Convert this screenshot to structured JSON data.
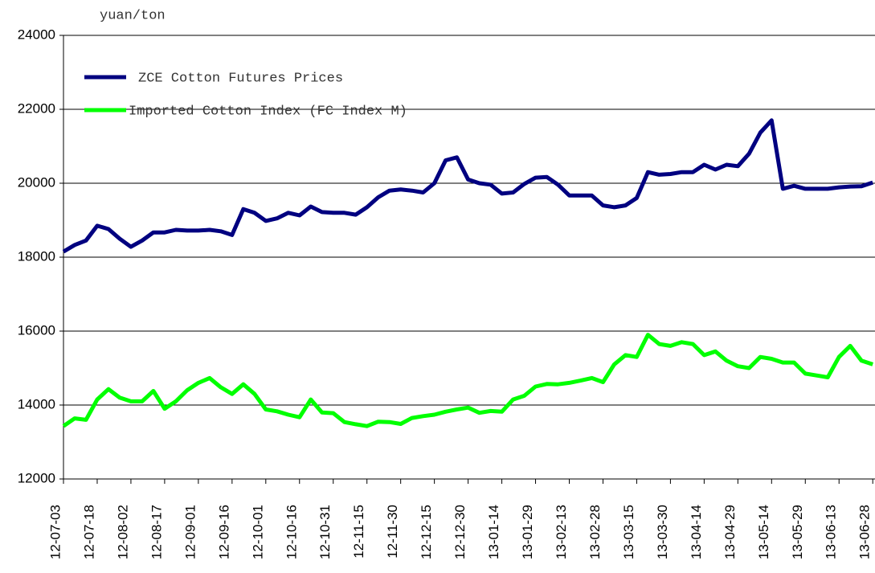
{
  "chart_data": {
    "type": "line",
    "y_axis_label": "yuan/ton",
    "x": [
      "12-07-03",
      "12-07-08",
      "12-07-13",
      "12-07-18",
      "12-07-23",
      "12-07-28",
      "12-08-02",
      "12-08-07",
      "12-08-12",
      "12-08-17",
      "12-08-22",
      "12-08-27",
      "12-09-01",
      "12-09-06",
      "12-09-11",
      "12-09-16",
      "12-09-21",
      "12-09-26",
      "12-10-01",
      "12-10-06",
      "12-10-11",
      "12-10-16",
      "12-10-21",
      "12-10-26",
      "12-10-31",
      "12-11-05",
      "12-11-10",
      "12-11-15",
      "12-11-20",
      "12-11-25",
      "12-11-30",
      "12-12-05",
      "12-12-10",
      "12-12-15",
      "12-12-20",
      "12-12-25",
      "12-12-30",
      "13-01-04",
      "13-01-09",
      "13-01-14",
      "13-01-19",
      "13-01-24",
      "13-01-29",
      "13-02-03",
      "13-02-08",
      "13-02-13",
      "13-02-18",
      "13-02-23",
      "13-02-28",
      "13-03-05",
      "13-03-10",
      "13-03-15",
      "13-03-20",
      "13-03-25",
      "13-03-30",
      "13-04-04",
      "13-04-09",
      "13-04-14",
      "13-04-19",
      "13-04-24",
      "13-04-29",
      "13-05-04",
      "13-05-09",
      "13-05-14",
      "13-05-19",
      "13-05-24",
      "13-05-29",
      "13-06-03",
      "13-06-08",
      "13-06-13",
      "13-06-18",
      "13-06-23",
      "13-06-28"
    ],
    "series": [
      {
        "name": "ZCE Cotton Futures Prices",
        "color": "#000080",
        "values": [
          18150,
          18330,
          18450,
          18850,
          18760,
          18500,
          18280,
          18450,
          18670,
          18670,
          18740,
          18720,
          18720,
          18740,
          18700,
          18600,
          19300,
          19200,
          18980,
          19050,
          19200,
          19130,
          19370,
          19220,
          19200,
          19200,
          19150,
          19350,
          19620,
          19800,
          19830,
          19800,
          19750,
          20000,
          20620,
          20700,
          20100,
          20000,
          19960,
          19720,
          19750,
          19980,
          20150,
          20170,
          19960,
          19670,
          19670,
          19670,
          19400,
          19350,
          19400,
          19600,
          20300,
          20230,
          20250,
          20300,
          20300,
          20500,
          20370,
          20500,
          20460,
          20800,
          21370,
          21700,
          19850,
          19930,
          19850,
          19850,
          19850,
          19890,
          19910,
          19920,
          20020
        ]
      },
      {
        "name": "Imported Cotton Index (FC Index M)",
        "color": "#00ff00",
        "values": [
          13430,
          13640,
          13600,
          14150,
          14430,
          14200,
          14100,
          14100,
          14380,
          13900,
          14100,
          14400,
          14600,
          14730,
          14480,
          14300,
          14560,
          14300,
          13880,
          13830,
          13740,
          13670,
          14150,
          13800,
          13780,
          13540,
          13480,
          13430,
          13550,
          13540,
          13490,
          13650,
          13700,
          13740,
          13820,
          13880,
          13930,
          13790,
          13840,
          13820,
          14150,
          14250,
          14500,
          14570,
          14560,
          14600,
          14660,
          14730,
          14620,
          15100,
          15350,
          15300,
          15900,
          15650,
          15600,
          15700,
          15650,
          15350,
          15450,
          15200,
          15050,
          15000,
          15300,
          15250,
          15150,
          15150,
          14850,
          14800,
          14750,
          15300,
          15600,
          15200,
          15100
        ]
      }
    ],
    "xlim": [
      "12-07-03",
      "13-06-29"
    ],
    "xticks": [
      "12-07-03",
      "12-07-18",
      "12-08-02",
      "12-08-17",
      "12-09-01",
      "12-09-16",
      "12-10-01",
      "12-10-16",
      "12-10-31",
      "12-11-15",
      "12-11-30",
      "12-12-15",
      "12-12-30",
      "13-01-14",
      "13-01-29",
      "13-02-13",
      "13-02-28",
      "13-03-15",
      "13-03-30",
      "13-04-14",
      "13-04-29",
      "13-05-14",
      "13-05-29",
      "13-06-13",
      "13-06-28"
    ],
    "ylim": [
      12000,
      24000
    ],
    "yticks": [
      12000,
      14000,
      16000,
      18000,
      20000,
      22000,
      24000
    ],
    "grid": true,
    "legend": "upper left"
  }
}
